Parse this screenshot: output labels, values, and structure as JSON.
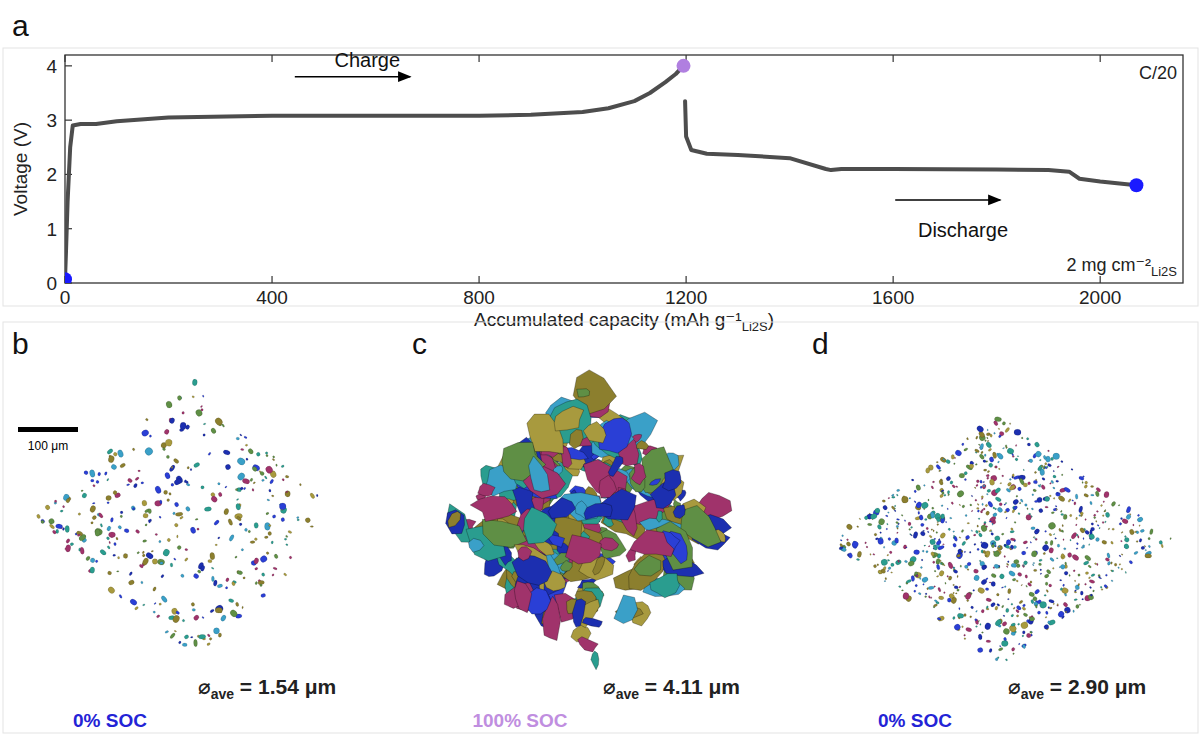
{
  "chart_data": {
    "type": "line",
    "letter": "a",
    "x_label": {
      "text": "Accumulated capacity (mAh g⁻¹",
      "sub": "Li2S",
      "end": ")"
    },
    "y_label": "Voltage (V)",
    "x": [
      0,
      2,
      5,
      10,
      15,
      30,
      60,
      100,
      200,
      400,
      600,
      800,
      900,
      1000,
      1050,
      1100,
      1130,
      1160,
      1180,
      1195,
      1196,
      1198,
      1200,
      1210,
      1240,
      1300,
      1400,
      1470,
      1480,
      1500,
      1600,
      1800,
      1900,
      1940,
      1960,
      2000,
      2070
    ],
    "series": [
      {
        "color": "#4d4d4d",
        "values": [
          0.07,
          0.6,
          1.5,
          2.5,
          2.9,
          2.93,
          2.93,
          2.98,
          3.05,
          3.08,
          3.08,
          3.08,
          3.1,
          3.15,
          3.22,
          3.35,
          3.5,
          3.7,
          3.85,
          4.0,
          null,
          3.35,
          2.7,
          2.45,
          2.38,
          2.36,
          2.3,
          2.1,
          2.08,
          2.1,
          2.1,
          2.09,
          2.08,
          2.05,
          1.92,
          1.87,
          1.8
        ]
      }
    ],
    "xlim": [
      0,
      2160
    ],
    "ylim": [
      0,
      4.2
    ],
    "xticks": [
      0,
      400,
      800,
      1200,
      1600,
      2000
    ],
    "yticks": [
      0,
      1,
      2,
      3,
      4
    ],
    "points": [
      {
        "x": 0,
        "y": 0.07,
        "color": "#1a1aff"
      },
      {
        "x": 1195,
        "y": 4.0,
        "color": "#b07fe0"
      },
      {
        "x": 2070,
        "y": 1.8,
        "color": "#1a1aff"
      }
    ],
    "annotations": [
      {
        "text": "Charge",
        "x": 584,
        "y": 3.97,
        "arrow_x": [
          444,
          667
        ],
        "arrow_y": 3.8
      },
      {
        "text": "Discharge",
        "x": 1735,
        "y": 0.85,
        "arrow_x": [
          1604,
          1807
        ],
        "arrow_y": 1.53
      }
    ],
    "rate_label": "C/20",
    "loading": {
      "text": "2 mg cm⁻²",
      "sub": "Li2S"
    }
  },
  "panels": [
    {
      "letter": "b",
      "label": "0% SOC",
      "color": "#2323d6",
      "diameter_symbol": "⌀",
      "diameter_sub": "ave",
      "diameter_text": " = 1.54 μm",
      "scale_bar": "100 μm"
    },
    {
      "letter": "c",
      "label": "100% SOC",
      "color": "#c08ee0",
      "diameter_symbol": "⌀",
      "diameter_sub": "ave",
      "diameter_text": " = 4.11 μm"
    },
    {
      "letter": "d",
      "label": "0% SOC",
      "color": "#2323d6",
      "diameter_symbol": "⌀",
      "diameter_sub": "ave",
      "diameter_text": " = 2.90 μm"
    }
  ]
}
